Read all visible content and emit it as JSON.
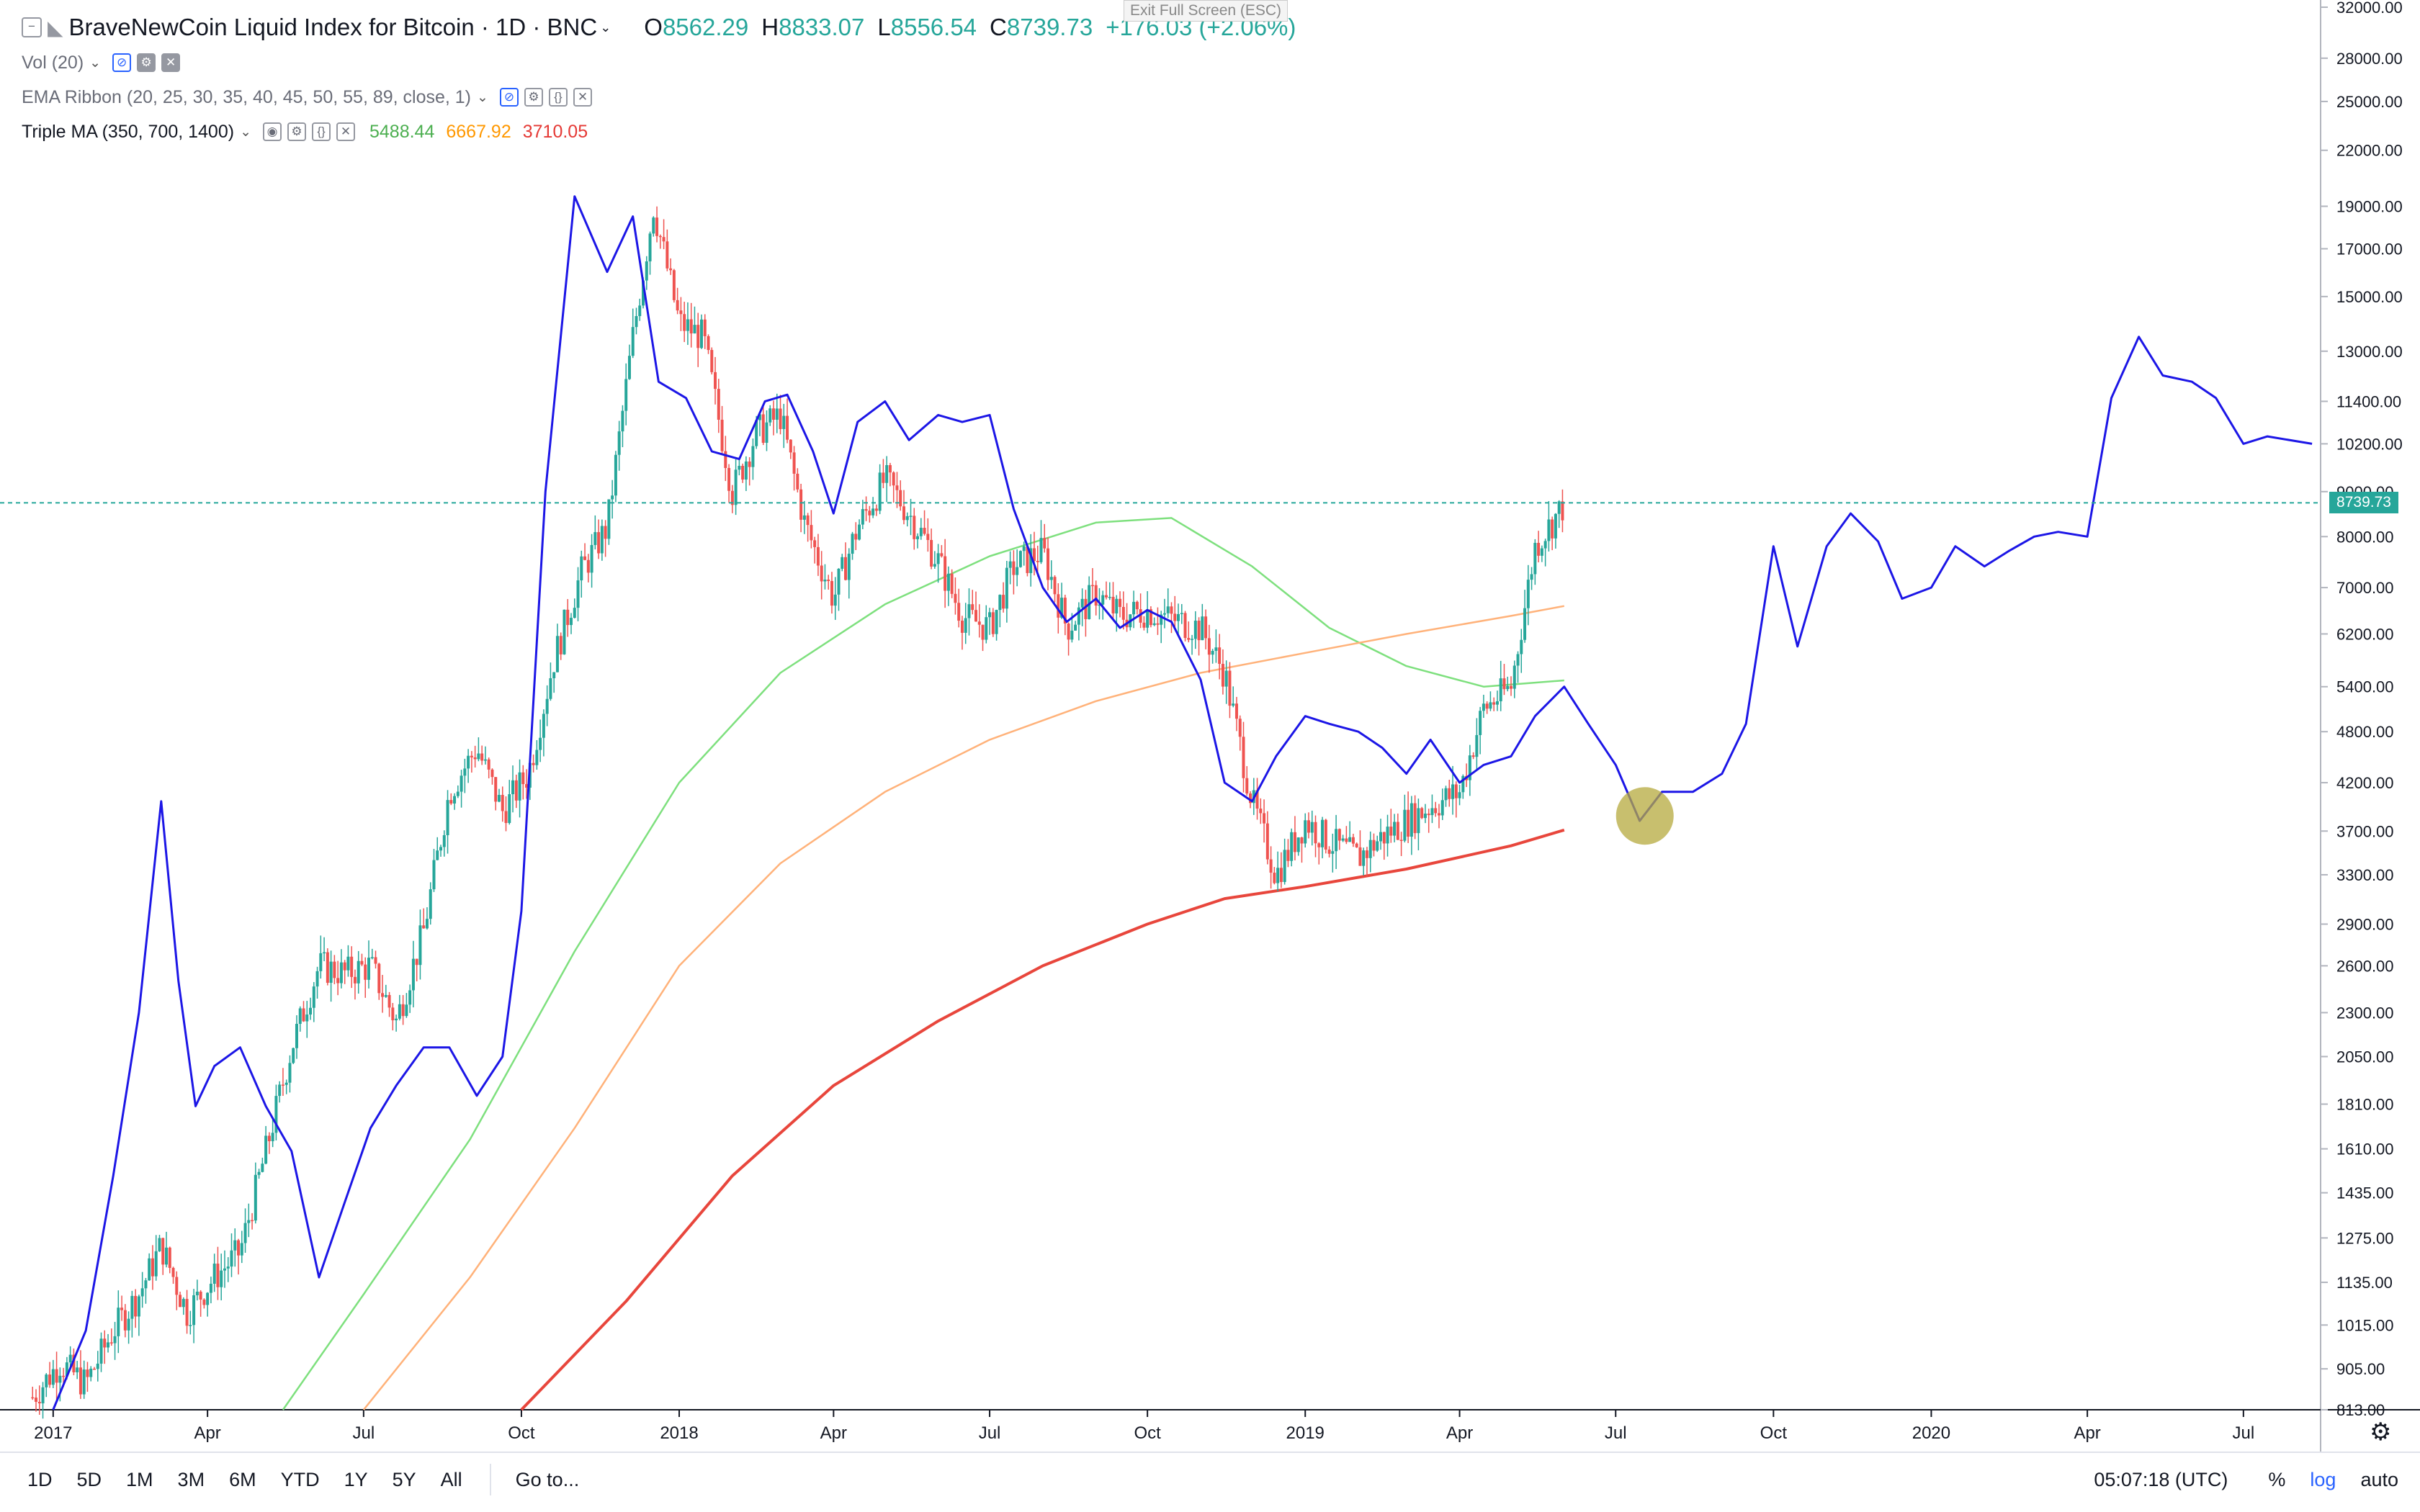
{
  "header": {
    "symbol_title": "BraveNewCoin Liquid Index for Bitcoin · 1D · BNC",
    "open_label": "O",
    "open": "8562.29",
    "high_label": "H",
    "high": "8833.07",
    "low_label": "L",
    "low": "8556.54",
    "close_label": "C",
    "close": "8739.73",
    "change": "+176.03 (+2.06%)",
    "tooltip": "Exit Full Screen (ESC)"
  },
  "indicators": [
    {
      "name": "Vol (20)",
      "values": []
    },
    {
      "name": "EMA Ribbon (20, 25, 30, 35, 40, 45, 50, 55, 89, close, 1)",
      "values": []
    },
    {
      "name": "Triple MA (350, 700, 1400)",
      "values": [
        "5488.44",
        "6667.92",
        "3710.05"
      ]
    }
  ],
  "colors": {
    "up": "#26a69a",
    "down": "#ef5350",
    "overlay": "#1c16e6",
    "ma350": "#7ee07e",
    "ma700": "#ffb27a",
    "ma1400": "#e8463c",
    "marker": "#b5a93e"
  },
  "price_label": "8739.73",
  "bottom_bar": {
    "ranges": [
      "1D",
      "5D",
      "1M",
      "3M",
      "6M",
      "YTD",
      "1Y",
      "5Y",
      "All"
    ],
    "goto": "Go to...",
    "time": "05:07:18 (UTC)",
    "percent": "%",
    "log": "log",
    "auto": "auto"
  },
  "chart_data": {
    "type": "line",
    "title": "BraveNewCoin Liquid Index for Bitcoin",
    "scale": "log",
    "ylim": [
      813,
      32000
    ],
    "xlim": [
      "2016-12-01",
      "2020-08-15"
    ],
    "y_ticks": [
      "32000.00",
      "28000.00",
      "25000.00",
      "22000.00",
      "19000.00",
      "17000.00",
      "15000.00",
      "13000.00",
      "11400.00",
      "10200.00",
      "9000.00",
      "8000.00",
      "7000.00",
      "6200.00",
      "5400.00",
      "4800.00",
      "4200.00",
      "3700.00",
      "3300.00",
      "2900.00",
      "2600.00",
      "2300.00",
      "2050.00",
      "1810.00",
      "1610.00",
      "1435.00",
      "1275.00",
      "1135.00",
      "1015.00",
      "905.00",
      "813.00"
    ],
    "x_ticks": [
      {
        "label": "2017",
        "date": "2017-01-01"
      },
      {
        "label": "Apr",
        "date": "2017-04-01"
      },
      {
        "label": "Jul",
        "date": "2017-07-01"
      },
      {
        "label": "Oct",
        "date": "2017-10-01"
      },
      {
        "label": "2018",
        "date": "2018-01-01"
      },
      {
        "label": "Apr",
        "date": "2018-04-01"
      },
      {
        "label": "Jul",
        "date": "2018-07-01"
      },
      {
        "label": "Oct",
        "date": "2018-10-01"
      },
      {
        "label": "2019",
        "date": "2019-01-01"
      },
      {
        "label": "Apr",
        "date": "2019-04-01"
      },
      {
        "label": "Jul",
        "date": "2019-07-01"
      },
      {
        "label": "Oct",
        "date": "2019-10-01"
      },
      {
        "label": "2020",
        "date": "2020-01-01"
      },
      {
        "label": "Apr",
        "date": "2020-04-01"
      },
      {
        "label": "Jul",
        "date": "2020-07-01"
      }
    ],
    "last_price": 8739.73,
    "series": [
      {
        "type": "candlestick",
        "x": [
          "2016-12-20",
          "2017-01-05",
          "2017-01-20",
          "2017-02-05",
          "2017-02-20",
          "2017-03-05",
          "2017-03-20",
          "2017-04-05",
          "2017-04-20",
          "2017-05-05",
          "2017-05-20",
          "2017-06-05",
          "2017-06-20",
          "2017-07-05",
          "2017-07-20",
          "2017-08-05",
          "2017-08-20",
          "2017-09-05",
          "2017-09-20",
          "2017-10-05",
          "2017-10-20",
          "2017-11-05",
          "2017-11-20",
          "2017-12-05",
          "2017-12-17",
          "2018-01-01",
          "2018-01-15",
          "2018-02-01",
          "2018-02-15",
          "2018-03-01",
          "2018-03-15",
          "2018-04-01",
          "2018-04-15",
          "2018-05-01",
          "2018-05-15",
          "2018-06-01",
          "2018-06-15",
          "2018-07-01",
          "2018-07-15",
          "2018-08-01",
          "2018-08-15",
          "2018-09-01",
          "2018-09-15",
          "2018-10-01",
          "2018-10-15",
          "2018-11-01",
          "2018-11-15",
          "2018-12-01",
          "2018-12-15",
          "2019-01-01",
          "2019-01-15",
          "2019-02-01",
          "2019-02-15",
          "2019-03-01",
          "2019-03-15",
          "2019-04-01",
          "2019-04-15",
          "2019-05-01",
          "2019-05-15",
          "2019-06-01"
        ],
        "values": [
          840,
          920,
          870,
          1000,
          1100,
          1250,
          1050,
          1150,
          1230,
          1600,
          2100,
          2600,
          2550,
          2600,
          2250,
          2850,
          4100,
          4600,
          3900,
          4300,
          5800,
          7300,
          8200,
          13500,
          19000,
          14000,
          13500,
          9000,
          10500,
          11000,
          8300,
          6800,
          8200,
          9300,
          8500,
          7500,
          6500,
          6300,
          7400,
          7700,
          6300,
          6900,
          6500,
          6600,
          6450,
          6300,
          5600,
          4000,
          3300,
          3800,
          3600,
          3450,
          3650,
          3800,
          3950,
          4100,
          5100,
          5400,
          7800,
          8700
        ]
      },
      {
        "name": "",
        "x": [
          "2017-01-01",
          "2017-01-20",
          "2017-02-05",
          "2017-02-20",
          "2017-03-05",
          "2017-03-15",
          "2017-03-25",
          "2017-04-05",
          "2017-04-20",
          "2017-05-05",
          "2017-05-20",
          "2017-06-05",
          "2017-06-20",
          "2017-07-05",
          "2017-07-20",
          "2017-08-05",
          "2017-08-20",
          "2017-09-05",
          "2017-09-20",
          "2017-10-01",
          "2017-10-15",
          "2017-11-01",
          "2017-11-20",
          "2017-12-05",
          "2017-12-20",
          "2018-01-05",
          "2018-01-20",
          "2018-02-05",
          "2018-02-20",
          "2018-03-05",
          "2018-03-20",
          "2018-04-01",
          "2018-04-15",
          "2018-05-01",
          "2018-05-15",
          "2018-06-01",
          "2018-06-15",
          "2018-07-01",
          "2018-07-15",
          "2018-08-01",
          "2018-08-15",
          "2018-09-01",
          "2018-09-15",
          "2018-10-01",
          "2018-10-15",
          "2018-11-01",
          "2018-11-15",
          "2018-12-01",
          "2018-12-15",
          "2019-01-01",
          "2019-01-15",
          "2019-02-01",
          "2019-02-15",
          "2019-03-01",
          "2019-03-15",
          "2019-04-01",
          "2019-04-15",
          "2019-05-01",
          "2019-05-15",
          "2019-06-01",
          "2019-06-15",
          "2019-07-01",
          "2019-07-15",
          "2019-07-28",
          "2019-08-15",
          "2019-09-01",
          "2019-09-15",
          "2019-10-01",
          "2019-10-15",
          "2019-11-01",
          "2019-11-15",
          "2019-12-01",
          "2019-12-15",
          "2020-01-01",
          "2020-01-15",
          "2020-02-01",
          "2020-02-15",
          "2020-03-01",
          "2020-03-15",
          "2020-04-01",
          "2020-04-15",
          "2020-05-01",
          "2020-05-15",
          "2020-06-01",
          "2020-06-15",
          "2020-07-01",
          "2020-07-15",
          "2020-08-10"
        ],
        "values": [
          813,
          1000,
          1500,
          2300,
          4000,
          2500,
          1800,
          2000,
          2100,
          1800,
          1600,
          1150,
          1400,
          1700,
          1900,
          2100,
          2100,
          1850,
          2050,
          3000,
          9000,
          19500,
          16000,
          18500,
          12000,
          11500,
          10000,
          9800,
          11400,
          11600,
          10000,
          8500,
          10800,
          11400,
          10300,
          11000,
          10800,
          11000,
          8600,
          7000,
          6400,
          6800,
          6300,
          6600,
          6400,
          5500,
          4200,
          4000,
          4500,
          5000,
          4900,
          4800,
          4600,
          4300,
          4700,
          4200,
          4400,
          4500,
          5000,
          5400,
          4900,
          4400,
          3800,
          4100,
          4100,
          4300,
          4900,
          7800,
          6000,
          7800,
          8500,
          7900,
          6800,
          7000,
          7800,
          7400,
          7700,
          8000,
          8100,
          8000,
          11500,
          13500,
          12200,
          12000,
          11500,
          10200,
          10400,
          10200
        ]
      },
      {
        "name": "",
        "x": [
          "2017-05-15",
          "2017-07-01",
          "2017-09-01",
          "2017-11-01",
          "2018-01-01",
          "2018-03-01",
          "2018-05-01",
          "2018-07-01",
          "2018-09-01",
          "2018-10-15",
          "2018-12-01",
          "2019-01-15",
          "2019-03-01",
          "2019-04-15",
          "2019-06-01"
        ],
        "values": [
          813,
          1100,
          1650,
          2700,
          4200,
          5600,
          6700,
          7600,
          8300,
          8400,
          7400,
          6300,
          5700,
          5400,
          5490
        ]
      },
      {
        "name": "",
        "x": [
          "2017-07-01",
          "2017-09-01",
          "2017-11-01",
          "2018-01-01",
          "2018-03-01",
          "2018-05-01",
          "2018-07-01",
          "2018-09-01",
          "2018-11-01",
          "2019-01-01",
          "2019-03-01",
          "2019-05-01",
          "2019-06-01"
        ],
        "values": [
          813,
          1150,
          1700,
          2600,
          3400,
          4100,
          4700,
          5200,
          5600,
          5900,
          6200,
          6500,
          6670
        ]
      },
      {
        "name": "",
        "x": [
          "2017-10-01",
          "2017-12-01",
          "2018-02-01",
          "2018-04-01",
          "2018-06-01",
          "2018-08-01",
          "2018-10-01",
          "2018-11-15",
          "2019-01-01",
          "2019-03-01",
          "2019-05-01",
          "2019-06-01"
        ],
        "values": [
          813,
          1080,
          1500,
          1900,
          2250,
          2600,
          2900,
          3100,
          3200,
          3350,
          3560,
          3710
        ]
      }
    ],
    "annotations": [
      {
        "type": "circle",
        "x": "2019-07-18",
        "y": 3850
      }
    ]
  }
}
